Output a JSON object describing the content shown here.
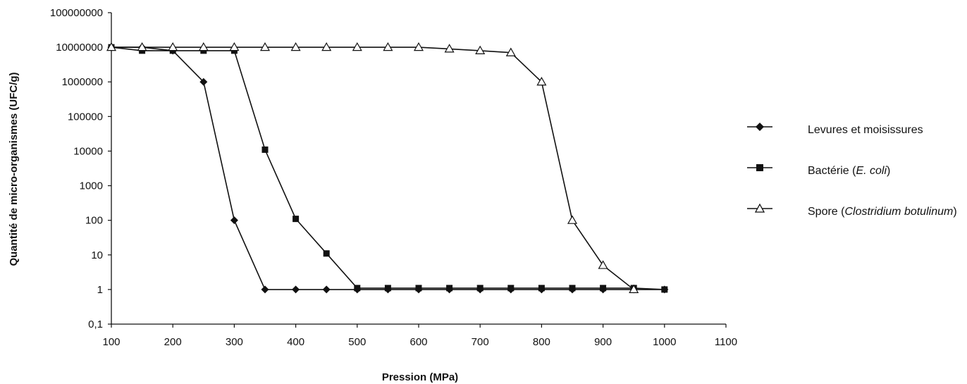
{
  "chart_data": {
    "type": "line",
    "xlabel": "Pression (MPa)",
    "ylabel": "Quantité de micro-organismes (UFC/g)",
    "xlim": [
      100,
      1100
    ],
    "xticks": [
      100,
      200,
      300,
      400,
      500,
      600,
      700,
      800,
      900,
      1000,
      1100
    ],
    "yscale": "log",
    "ylim": [
      0.1,
      100000000
    ],
    "yticks": [
      0.1,
      1,
      10,
      100,
      1000,
      10000,
      100000,
      1000000,
      10000000,
      100000000
    ],
    "ytick_labels": [
      "0,1",
      "1",
      "10",
      "100",
      "1000",
      "10000",
      "100000",
      "1000000",
      "10000000",
      "100000000"
    ],
    "grid": false,
    "legend_position": "right",
    "series": [
      {
        "name": "Levures et moisissures",
        "marker": "diamond",
        "color": "#111111",
        "x": [
          100,
          150,
          200,
          250,
          300,
          350,
          400,
          450,
          500,
          550,
          600,
          650,
          700,
          750,
          800,
          850,
          900,
          950,
          1000
        ],
        "y": [
          10000000,
          10000000,
          8000000,
          1000000,
          100,
          1,
          1,
          1,
          1,
          1,
          1,
          1,
          1,
          1,
          1,
          1,
          1,
          1,
          1
        ]
      },
      {
        "name": "Bactérie (E. coli)",
        "marker": "square",
        "color": "#111111",
        "x": [
          100,
          150,
          200,
          250,
          300,
          350,
          400,
          450,
          500,
          550,
          600,
          650,
          700,
          750,
          800,
          850,
          900,
          950,
          1000
        ],
        "y": [
          10000000,
          8000000,
          8000000,
          8000000,
          8000000,
          11000,
          110,
          11,
          1.1,
          1.1,
          1.1,
          1.1,
          1.1,
          1.1,
          1.1,
          1.1,
          1.1,
          1.1,
          1
        ]
      },
      {
        "name": "Spore (Clostridium botulinum)",
        "marker": "triangle-open",
        "color": "#111111",
        "x": [
          100,
          150,
          200,
          250,
          300,
          350,
          400,
          450,
          500,
          550,
          600,
          650,
          700,
          750,
          800,
          850,
          900,
          950
        ],
        "y": [
          10000000,
          10000000,
          10000000,
          10000000,
          10000000,
          10000000,
          10000000,
          10000000,
          10000000,
          10000000,
          10000000,
          9000000,
          8000000,
          7000000,
          1000000,
          100,
          5,
          1
        ]
      }
    ]
  },
  "legend": {
    "items": [
      {
        "parts": [
          {
            "text": "Levures et moisissures",
            "italic": false
          }
        ]
      },
      {
        "parts": [
          {
            "text": "Bactérie (",
            "italic": false
          },
          {
            "text": "E. coli",
            "italic": true
          },
          {
            "text": ")",
            "italic": false
          }
        ]
      },
      {
        "parts": [
          {
            "text": "Spore (",
            "italic": false
          },
          {
            "text": "Clostridium",
            "italic": true
          },
          {
            "text": " ",
            "italic": false
          },
          {
            "text": "botulinum",
            "italic": true
          },
          {
            "text": ")",
            "italic": false
          }
        ]
      }
    ]
  }
}
